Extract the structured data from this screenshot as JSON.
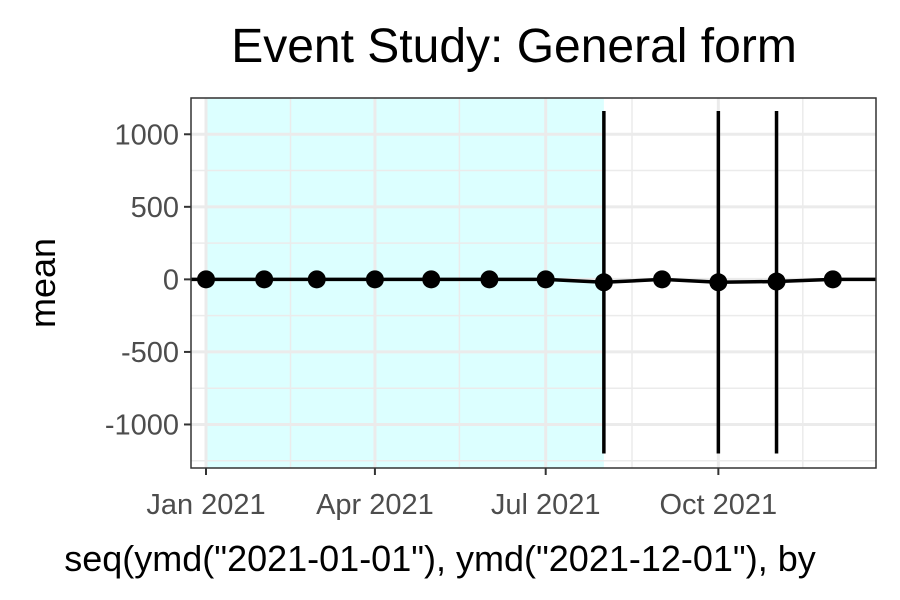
{
  "chart_data": {
    "type": "line",
    "title": "Event Study: General form",
    "xlabel": "seq(ymd(\"2021-01-01\"), ymd(\"2021-12-01\"), by",
    "ylabel": "mean",
    "xlim": [
      "2020-12-24",
      "2021-12-24"
    ],
    "ylim": [
      -1300,
      1250
    ],
    "x_ticks": [
      {
        "date": "2021-01-01",
        "label": "Jan 2021"
      },
      {
        "date": "2021-04-01",
        "label": "Apr 2021"
      },
      {
        "date": "2021-07-01",
        "label": "Jul 2021"
      },
      {
        "date": "2021-10-01",
        "label": "Oct 2021"
      }
    ],
    "y_ticks": [
      {
        "value": 1000,
        "label": "1000"
      },
      {
        "value": 500,
        "label": "500"
      },
      {
        "value": 0,
        "label": "0"
      },
      {
        "value": -500,
        "label": "-500"
      },
      {
        "value": -1000,
        "label": "-1000"
      }
    ],
    "grid": true,
    "shaded_region": {
      "from": "2021-01-01",
      "to": "2021-08-01",
      "color": "#dcffff"
    },
    "series": [
      {
        "color": "#000000",
        "points": [
          {
            "x": "2021-01-01",
            "y": 0
          },
          {
            "x": "2021-02-01",
            "y": 0
          },
          {
            "x": "2021-03-01",
            "y": 0
          },
          {
            "x": "2021-04-01",
            "y": 0
          },
          {
            "x": "2021-05-01",
            "y": 0
          },
          {
            "x": "2021-06-01",
            "y": 0
          },
          {
            "x": "2021-07-01",
            "y": 0
          },
          {
            "x": "2021-08-01",
            "y": -20,
            "ymin": -1200,
            "ymax": 1160
          },
          {
            "x": "2021-09-01",
            "y": 0
          },
          {
            "x": "2021-10-01",
            "y": -20,
            "ymin": -1200,
            "ymax": 1160
          },
          {
            "x": "2021-11-01",
            "y": -15,
            "ymin": -1200,
            "ymax": 1160
          },
          {
            "x": "2021-12-01",
            "y": 0
          }
        ]
      }
    ]
  }
}
